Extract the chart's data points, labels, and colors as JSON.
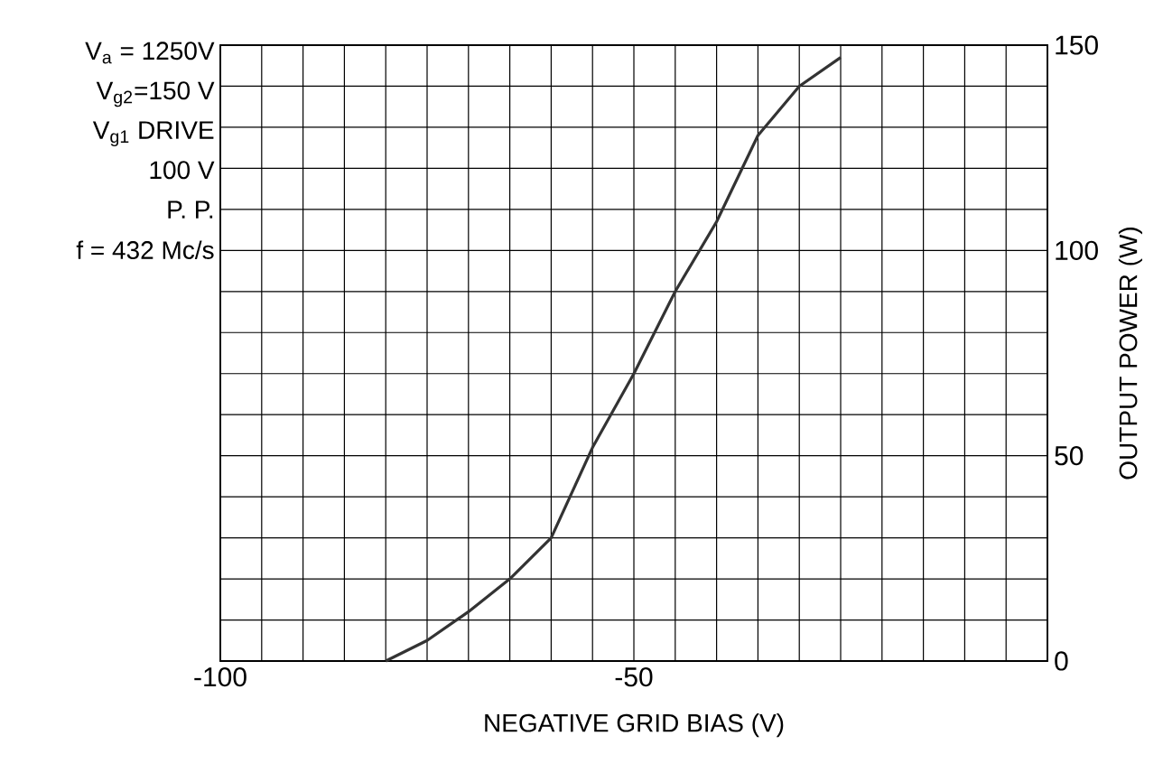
{
  "chart_data": {
    "type": "line",
    "xlabel": "NEGATIVE GRID BIAS (V)",
    "ylabel": "OUTPUT POWER (W)",
    "x": [
      -80,
      -75,
      -70,
      -65,
      -60,
      -55,
      -50,
      -45,
      -40,
      -35,
      -30,
      -25
    ],
    "values": [
      0,
      5,
      12,
      20,
      30,
      52,
      70,
      90,
      107,
      128,
      140,
      147
    ],
    "color": "#333333",
    "marker": "none",
    "line_style": "solid",
    "grid": true,
    "xlim": [
      -100,
      0
    ],
    "ylim": [
      0,
      150
    ],
    "xticks": [
      -100,
      {
        "value": -95,
        "label": null
      },
      {
        "value": -90,
        "label": null
      },
      {
        "value": -85,
        "label": null
      },
      {
        "value": -80,
        "label": null
      },
      {
        "value": -75,
        "label": null
      },
      {
        "value": -70,
        "label": null
      },
      {
        "value": -65,
        "label": null
      },
      {
        "value": -60,
        "label": null
      },
      {
        "value": -55,
        "label": null
      },
      -50,
      {
        "value": -45,
        "label": null
      },
      {
        "value": -40,
        "label": null
      },
      {
        "value": -35,
        "label": null
      },
      {
        "value": -30,
        "label": null
      },
      {
        "value": -25,
        "label": null
      },
      {
        "value": -20,
        "label": null
      },
      {
        "value": -15,
        "label": null
      },
      {
        "value": -10,
        "label": null
      },
      {
        "value": -5,
        "label": null
      },
      {
        "value": 0,
        "label": null
      }
    ],
    "yticks": [
      0,
      {
        "value": 10,
        "label": null
      },
      {
        "value": 20,
        "label": null
      },
      {
        "value": 30,
        "label": null
      },
      {
        "value": 40,
        "label": null
      },
      50,
      {
        "value": 60,
        "label": null
      },
      {
        "value": 70,
        "label": null
      },
      {
        "value": 80,
        "label": null
      },
      {
        "value": 90,
        "label": null
      },
      100,
      {
        "value": 110,
        "label": null
      },
      {
        "value": 120,
        "label": null
      },
      {
        "value": 130,
        "label": null
      },
      {
        "value": 140,
        "label": null
      },
      150
    ],
    "annotations": [
      "V$_{a}$ = 1250V",
      "V$_{g2}$=150 V",
      "V$_{g1}$ DRIVE",
      "100  V",
      "P. P.",
      "f = 432 Mc/s"
    ]
  }
}
